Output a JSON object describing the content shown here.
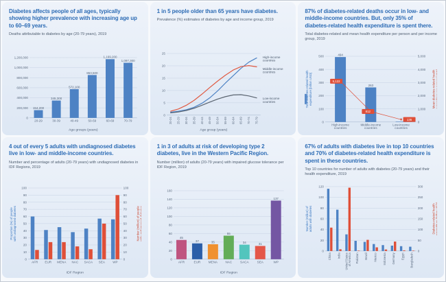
{
  "colors": {
    "title_blue": "#2d6cb5",
    "bar_blue": "#4d82c4",
    "bar_red": "#df4f38",
    "line_gray": "#5a6470",
    "tick_gray": "#5b6b80",
    "card_bg_top": "#eef3fa",
    "card_bg_bottom": "#dde7f4"
  },
  "panels": [
    {
      "title": "Diabetes affects people of all ages, typically showing higher prevalence with increasing age up to 60–69 years.",
      "subtitle": "Deaths attributable to diabetes by age (20-79 years), 2019"
    },
    {
      "title": "1 in 5 people older than 65 years have diabetes.",
      "subtitle": "Prevalence (%) estimates of diabetes by age and income group, 2019"
    },
    {
      "title": "87% of diabetes-related deaths occur in low- and middle-income countries. But, only 35% of diabetes-related health expenditure is spent there.",
      "subtitle": "Total diabetes-related and mean health expenditure per person and per income group, 2019"
    },
    {
      "title": "4 out of every 5 adults with undiagnosed diabetes live in low- and middle-income countries.",
      "subtitle": "Number and percentage of adults (20-79 years) with undiagnosed diabetes in IDF Regions, 2019"
    },
    {
      "title": "1 in 3 of adults at risk of developing type 2 diabetes, live in the Western Pacific Region.",
      "subtitle": "Number (million) of adults (20-79 years) with impaired glucose tolerance per IDF Region, 2019"
    },
    {
      "title": "67% of adults with diabetes live in top 10 countries and 70% of diabetes-related health expenditure is spent in these countries.",
      "subtitle": "Top 10 countries for number of adults with diabetes (20-79 years) and their health expenditure, 2019"
    }
  ],
  "chart_data": [
    {
      "type": "bar",
      "title": "Deaths attributable to diabetes by age (20-79 years), 2019",
      "categories": [
        "20-29",
        "30-39",
        "40-49",
        "50-59",
        "60-69",
        "70-79"
      ],
      "xlabel": "Age groups (years)",
      "ylim": [
        0,
        1200000
      ],
      "yticks": [
        "0",
        "200,000",
        "400,000",
        "600,000",
        "800,000",
        "1,000,000",
        "1,200,000"
      ],
      "series": [
        {
          "type": "bar",
          "name": "Deaths",
          "axis": "left",
          "color": "#4d82c4",
          "bw": 13,
          "values": [
            154200,
            345300,
            572100,
            853500,
            1169200,
            1097300
          ],
          "labels": [
            "154,200",
            "345,300",
            "572,100",
            "853,500",
            "1,169,200",
            "1,097,300"
          ]
        }
      ],
      "layout": {
        "h": 118,
        "m": [
          10,
          6,
          20,
          30
        ]
      }
    },
    {
      "type": "line",
      "title": "Prevalence (%) estimates of diabetes by age and income group, 2019",
      "categories": [
        "20-24",
        "25-29",
        "30-34",
        "35-39",
        "40-44",
        "45-49",
        "50-54",
        "55-59",
        "60-64",
        "65-69",
        "70-74",
        "75-79"
      ],
      "xlabel": "Age group (years)",
      "ylim": [
        0,
        25
      ],
      "yticks": [
        "0",
        "5",
        "10",
        "15",
        "20",
        "25"
      ],
      "legend_position": "right-of-line-ends",
      "series": [
        {
          "type": "line",
          "name": "High-income countries",
          "axis": "left",
          "color": "#4d82c4",
          "legend": true,
          "legend_dy": -1,
          "values": [
            1.2,
            1.6,
            2.2,
            3.2,
            4.8,
            7,
            9.8,
            13,
            16,
            19,
            21.5,
            23.2
          ]
        },
        {
          "type": "line",
          "name": "Middle-income countries",
          "axis": "left",
          "color": "#e05a42",
          "legend": true,
          "legend_dy": 3,
          "values": [
            1.6,
            2.5,
            4,
            6,
            8.5,
            11.2,
            13.8,
            16.2,
            18.3,
            19.7,
            20.1,
            19.6
          ]
        },
        {
          "type": "line",
          "name": "Low-income countries",
          "axis": "left",
          "color": "#5a6470",
          "legend": true,
          "legend_dy": 1,
          "values": [
            0.9,
            1.3,
            1.9,
            2.8,
            4,
            5.3,
            6.5,
            7.5,
            8.2,
            8.3,
            7.8,
            7.0
          ]
        }
      ],
      "layout": {
        "h": 120,
        "m": [
          6,
          42,
          24,
          14
        ],
        "rotate_x": true
      }
    },
    {
      "type": "combo",
      "title": "Total diabetes-related and mean health expenditure per person and per income group, 2019",
      "categories": [
        "High-income\ncountries",
        "Middle-income\ncountries",
        "Low-income\ncountries"
      ],
      "ylim": [
        0,
        500
      ],
      "yticks": [
        "0",
        "100",
        "200",
        "300",
        "400",
        "500"
      ],
      "y2lim": [
        0,
        5000
      ],
      "y2ticks": [
        "0",
        "1,000",
        "2,000",
        "3,000",
        "4,000",
        "5,000"
      ],
      "left_title": {
        "text": "Total diabetes-related health\nexpenditure [billion USD]",
        "color": "#3a78c2",
        "pill": true
      },
      "right_title": {
        "text": "Mean diabetes-related health\nexpenditure per person [USD]",
        "color": "#cc4a33"
      },
      "series": [
        {
          "type": "bar",
          "name": "Total diabetes-related health expenditure (billion USD)",
          "axis": "left",
          "color": "#4d82c4",
          "bw": 16,
          "values": [
            494,
            263,
            3
          ],
          "labels": [
            "494",
            "263",
            "3"
          ]
        },
        {
          "type": "line",
          "name": "Mean diabetes-related health expenditure per person (USD)",
          "axis": "right",
          "color": "#df4f38",
          "boxes": true,
          "values": [
            5122,
            812,
            136
          ],
          "labels": [
            "5,122",
            "812",
            "136"
          ],
          "plot_y": [
            3100,
            800,
            190
          ],
          "box_dx": [
            -6,
            -4,
            12
          ]
        }
      ],
      "layout": {
        "h": 118,
        "m": [
          8,
          30,
          14,
          30
        ]
      }
    },
    {
      "type": "dual-bar",
      "title": "Number and percentage of adults (20-79 years) with undiagnosed diabetes in IDF Regions, 2019",
      "categories": [
        "AFR",
        "EUR",
        "MENA",
        "NAC",
        "SACA",
        "SEA",
        "WP"
      ],
      "xlabel": "IDF Region",
      "ylim": [
        0,
        100
      ],
      "yticks": [
        "0",
        "10",
        "20",
        "30",
        "40",
        "50",
        "60",
        "70",
        "80",
        "90",
        "100"
      ],
      "y2lim": [
        0,
        100
      ],
      "y2ticks": [
        "0",
        "10",
        "20",
        "30",
        "40",
        "50",
        "60",
        "70",
        "80",
        "90",
        "100"
      ],
      "left_title": {
        "text": "Proportion (%) of people\nwith undiagnosed diabetes",
        "color": "#3a78c2"
      },
      "right_title": {
        "text": "Number (million) of people\nwith undiagnosed diabetes",
        "color": "#cc4a33"
      },
      "series": [
        {
          "type": "bar",
          "name": "Proportion (%) of people with undiagnosed diabetes",
          "axis": "left",
          "color": "#4d82c4",
          "bw": 5.5,
          "values": [
            60,
            41,
            45,
            38,
            43,
            57,
            56
          ]
        },
        {
          "type": "bar",
          "name": "Number (million) of people with undiagnosed diabetes",
          "axis": "right",
          "color": "#df4f38",
          "bw": 5.5,
          "values": [
            13,
            24,
            24,
            18,
            14,
            50,
            90
          ]
        }
      ],
      "layout": {
        "h": 132,
        "m": [
          6,
          28,
          22,
          28
        ]
      }
    },
    {
      "type": "bar",
      "title": "Number (million) of adults (20-79 years) with impaired glucose tolerance per IDF Region, 2019",
      "categories": [
        "AFR",
        "EUR",
        "MENA",
        "NAC",
        "SACA",
        "SEA",
        "WP"
      ],
      "xlabel": "IDF Region",
      "ylim": [
        0,
        160
      ],
      "yticks": [
        "0",
        "20",
        "40",
        "60",
        "80",
        "100",
        "120",
        "140",
        "160"
      ],
      "series": [
        {
          "type": "bar",
          "name": "Adults with impaired glucose tolerance (million)",
          "axis": "left",
          "bw": 15,
          "colors": [
            "#bf5480",
            "#2b5ea8",
            "#f0912f",
            "#63ad57",
            "#52c5bd",
            "#e45648",
            "#7456a3"
          ],
          "values": [
            45,
            37,
            35,
            55,
            34,
            31,
            137
          ],
          "labels": [
            "45",
            "37",
            "35",
            "55",
            "34",
            "31",
            "137"
          ]
        }
      ],
      "layout": {
        "h": 130,
        "m": [
          8,
          8,
          22,
          24
        ]
      }
    },
    {
      "type": "dual-bar",
      "title": "Top 10 countries for number of adults with diabetes (20-79 years) and their health expenditure, 2019",
      "categories": [
        "China",
        "India",
        "United States\nof America",
        "Pakistan",
        "Brazil",
        "Mexico",
        "Indonesia",
        "Germany",
        "Egypt",
        "Bangladesh"
      ],
      "ylim": [
        0,
        120
      ],
      "yticks": [
        "0",
        "20",
        "40",
        "60",
        "80",
        "100",
        "120"
      ],
      "y2lim": [
        0,
        300
      ],
      "y2ticks": [
        "0",
        "50",
        "100",
        "150",
        "200",
        "250",
        "300"
      ],
      "left_title": {
        "text": "Number (million) of\nadults with diabetes",
        "color": "#3a78c2"
      },
      "right_title": {
        "text": "Diabetes-related health\nexpenditure (billion USD)",
        "color": "#cc4a33"
      },
      "series": [
        {
          "type": "bar",
          "name": "Number (million) of adults with diabetes",
          "axis": "left",
          "color": "#4d82c4",
          "bw": 3.4,
          "values": [
            116,
            77,
            31,
            19,
            17,
            13,
            11,
            10,
            9,
            8
          ]
        },
        {
          "type": "bar",
          "name": "Diabetes-related health expenditure (billion USD)",
          "axis": "right",
          "color": "#df4f38",
          "bw": 3.4,
          "values": [
            109,
            8,
            295,
            2,
            52,
            17,
            7,
            44,
            3,
            2
          ]
        }
      ],
      "layout": {
        "h": 134,
        "m": [
          6,
          30,
          34,
          30
        ],
        "rotate_x": true
      }
    }
  ]
}
